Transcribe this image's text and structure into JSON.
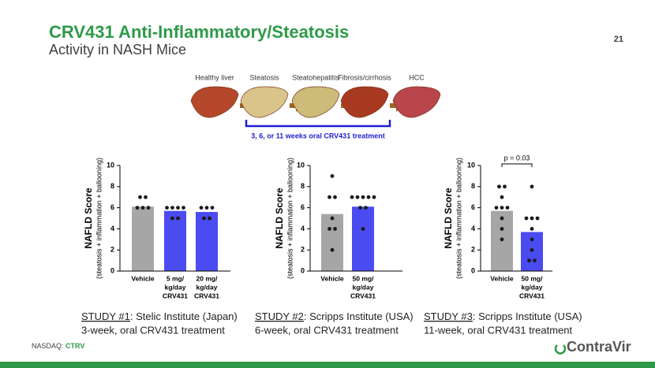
{
  "slide": {
    "title": "CRV431 Anti-Inflammatory/Steatosis",
    "subtitle": "Activity in NASH Mice",
    "page_number": "21",
    "stages": [
      "Healthy liver",
      "Steatosis",
      "Steatohepatitis",
      "Fibrosis/cirrhosis",
      "HCC"
    ],
    "treatment": "3, 6, or 11 weeks oral CRV431 treatment",
    "studies": [
      {
        "label": "STUDY #1",
        "text": ": Stelic Institute (Japan)",
        "detail": "3-week, oral CRV431 treatment"
      },
      {
        "label": "STUDY #2",
        "text": ": Scripps Institute (USA)",
        "detail": "6-week, oral CRV431 treatment"
      },
      {
        "label": "STUDY #3",
        "text": ": Scripps Institute (USA)",
        "detail": "11-week, oral CRV431 treatment"
      }
    ],
    "footer": {
      "exchange": "NASDAQ:",
      "ticker": "CTRV",
      "logo": "ContraVir"
    }
  },
  "chart_data": [
    {
      "type": "bar",
      "y_label": "NAFLD Score",
      "y_sublabel": "(steatosis + inflammation + ballooning)",
      "categories": [
        [
          "Vehicle"
        ],
        [
          "5 mg/",
          "kg/day",
          "CRV431"
        ],
        [
          "20 mg/",
          "kg/day",
          "CRV431"
        ]
      ],
      "values": [
        6.1,
        5.7,
        5.6
      ],
      "colors": [
        "#a6a6a6",
        "#4b4bf2",
        "#4b4bf2"
      ],
      "points": [
        [
          7,
          7,
          6,
          6,
          6
        ],
        [
          6,
          6,
          6,
          6,
          5,
          5
        ],
        [
          6,
          6,
          6,
          5,
          5
        ]
      ],
      "ylim": [
        0,
        10
      ],
      "yticks": [
        0,
        2,
        4,
        6,
        8,
        10
      ]
    },
    {
      "type": "bar",
      "y_label": "NAFLD Score",
      "y_sublabel": "(steatosis + inflammation + ballooning)",
      "categories": [
        [
          "Vehicle"
        ],
        [
          "50 mg/",
          "kg/day",
          "CRV431"
        ]
      ],
      "values": [
        5.4,
        6.1
      ],
      "colors": [
        "#a6a6a6",
        "#4b4bf2"
      ],
      "points": [
        [
          9,
          7,
          7,
          5,
          4,
          4,
          2
        ],
        [
          7,
          7,
          7,
          7,
          7,
          6,
          6,
          4
        ]
      ],
      "ylim": [
        0,
        10
      ],
      "yticks": [
        0,
        2,
        4,
        6,
        8,
        10
      ]
    },
    {
      "type": "bar",
      "y_label": "NAFLD Score",
      "y_sublabel": "(steatosis + inflammation + ballooning)",
      "categories": [
        [
          "Vehicle"
        ],
        [
          "50 mg/",
          "kg/day",
          "CRV431"
        ]
      ],
      "values": [
        5.7,
        3.7
      ],
      "colors": [
        "#a6a6a6",
        "#4b4bf2"
      ],
      "points": [
        [
          8,
          8,
          7,
          6,
          6,
          6,
          5,
          4,
          3
        ],
        [
          8,
          5,
          5,
          5,
          4,
          3,
          2,
          1,
          1
        ]
      ],
      "annotation": "p = 0.03",
      "ylim": [
        0,
        10
      ],
      "yticks": [
        0,
        2,
        4,
        6,
        8,
        10
      ]
    }
  ]
}
